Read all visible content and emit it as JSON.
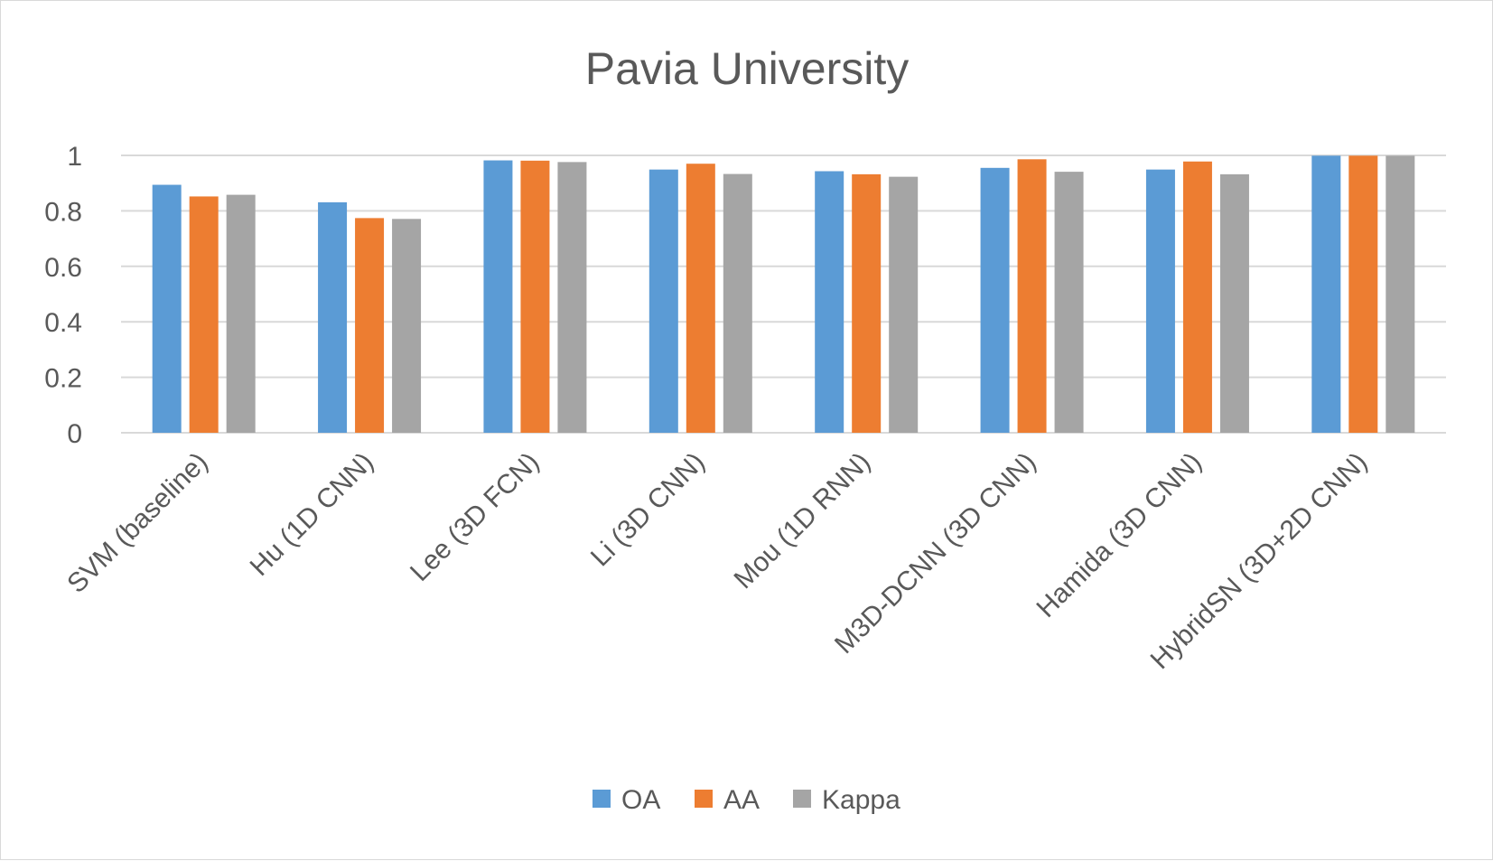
{
  "chart_data": {
    "type": "bar",
    "title": "Pavia University",
    "xlabel": "",
    "ylabel": "",
    "ylim": [
      0,
      1
    ],
    "yticks": [
      0,
      0.2,
      0.4,
      0.6,
      0.8,
      1
    ],
    "ytick_labels": [
      "0",
      "0.2",
      "0.4",
      "0.6",
      "0.8",
      "1"
    ],
    "grid": true,
    "legend_position": "bottom",
    "categories": [
      "SVM (baseline)",
      "Hu (1D CNN)",
      "Lee (3D FCN)",
      "Li (3D CNN)",
      "Mou (1D RNN)",
      "M3D-DCNN (3D CNN)",
      "Hamida (3D CNN)",
      "HybridSN (3D+2D CNN)"
    ],
    "series": [
      {
        "name": "OA",
        "color": "#5b9bd5",
        "values": [
          0.894,
          0.831,
          0.982,
          0.949,
          0.943,
          0.955,
          0.949,
          0.999
        ]
      },
      {
        "name": "AA",
        "color": "#ed7d31",
        "values": [
          0.852,
          0.774,
          0.981,
          0.97,
          0.932,
          0.986,
          0.978,
          0.999
        ]
      },
      {
        "name": "Kappa",
        "color": "#a5a5a5",
        "values": [
          0.858,
          0.771,
          0.976,
          0.933,
          0.923,
          0.941,
          0.932,
          0.999
        ]
      }
    ]
  }
}
